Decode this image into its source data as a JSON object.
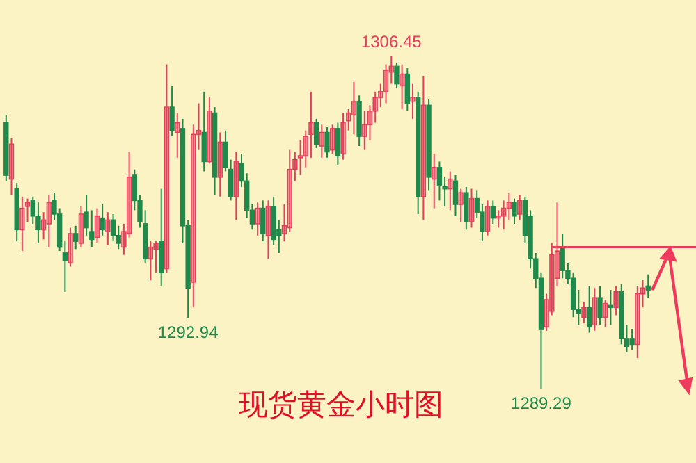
{
  "chart_data": {
    "type": "candlestick",
    "title": "现货黄金小时图",
    "categories": [
      null,
      null,
      null,
      null,
      null,
      null,
      null,
      null,
      null,
      null,
      null,
      null,
      null,
      null,
      null,
      null,
      null,
      null,
      null,
      null,
      null,
      null,
      null,
      null,
      null,
      null,
      null,
      null,
      null,
      null,
      null,
      null,
      null,
      null,
      null,
      null,
      null,
      null,
      null,
      null,
      null,
      null,
      null,
      null,
      null,
      null,
      null,
      null,
      null,
      null,
      null,
      null,
      null,
      null,
      null,
      null,
      null,
      null,
      null,
      null,
      null,
      null,
      null,
      null,
      null,
      null,
      null,
      null,
      null,
      null,
      null,
      null,
      null,
      null,
      null,
      null,
      null,
      null,
      null,
      null,
      null,
      null,
      null,
      null,
      null,
      null,
      null,
      null,
      null,
      null,
      null,
      null,
      null,
      null,
      null,
      null,
      null,
      null,
      null,
      null,
      null,
      null,
      null,
      null,
      null,
      null,
      null,
      null,
      null,
      null,
      null,
      null,
      null,
      null,
      null,
      null,
      null,
      null,
      null,
      null,
      null
    ],
    "ohlc": [
      [
        1303.0,
        1303.4,
        1300.0,
        1300.3
      ],
      [
        1300.1,
        1302.2,
        1299.3,
        1301.9
      ],
      [
        1299.6,
        1299.9,
        1296.9,
        1297.5
      ],
      [
        1297.5,
        1299.2,
        1296.4,
        1298.6
      ],
      [
        1298.7,
        1299.1,
        1297.9,
        1298.9
      ],
      [
        1299.0,
        1299.2,
        1297.8,
        1298.2
      ],
      [
        1298.2,
        1298.9,
        1296.8,
        1297.5
      ],
      [
        1297.5,
        1298.4,
        1297.0,
        1298.0
      ],
      [
        1297.8,
        1299.3,
        1296.6,
        1298.9
      ],
      [
        1299.0,
        1299.4,
        1298.0,
        1298.3
      ],
      [
        1298.3,
        1298.6,
        1296.4,
        1296.6
      ],
      [
        1296.3,
        1296.9,
        1294.3,
        1295.9
      ],
      [
        1295.8,
        1297.6,
        1295.6,
        1297.3
      ],
      [
        1297.3,
        1297.7,
        1296.5,
        1296.9
      ],
      [
        1296.8,
        1298.7,
        1296.6,
        1298.3
      ],
      [
        1298.4,
        1299.3,
        1297.2,
        1297.6
      ],
      [
        1297.4,
        1298.5,
        1296.6,
        1297.0
      ],
      [
        1297.1,
        1298.6,
        1296.8,
        1298.2
      ],
      [
        1298.1,
        1298.8,
        1297.2,
        1297.5
      ],
      [
        1297.4,
        1298.4,
        1296.7,
        1298.0
      ],
      [
        1298.0,
        1298.3,
        1296.9,
        1297.2
      ],
      [
        1297.2,
        1297.7,
        1296.5,
        1296.8
      ],
      [
        1296.6,
        1297.8,
        1296.2,
        1297.4
      ],
      [
        1297.3,
        1301.5,
        1297.1,
        1300.2
      ],
      [
        1300.3,
        1300.6,
        1298.5,
        1299.0
      ],
      [
        1299.0,
        1299.3,
        1297.6,
        1297.9
      ],
      [
        1297.8,
        1298.5,
        1295.8,
        1296.0
      ],
      [
        1296.0,
        1296.9,
        1294.9,
        1296.6
      ],
      [
        1296.5,
        1296.9,
        1295.3,
        1296.8
      ],
      [
        1296.9,
        1299.6,
        1294.6,
        1295.3
      ],
      [
        1295.5,
        1306.0,
        1295.3,
        1303.8
      ],
      [
        1303.8,
        1304.9,
        1302.3,
        1302.6
      ],
      [
        1302.5,
        1303.5,
        1301.2,
        1303.0
      ],
      [
        1302.7,
        1303.2,
        1296.8,
        1297.7
      ],
      [
        1297.7,
        1298.0,
        1292.94,
        1294.5
      ],
      [
        1294.8,
        1302.9,
        1293.5,
        1302.4
      ],
      [
        1302.4,
        1304.0,
        1301.6,
        1302.6
      ],
      [
        1302.5,
        1304.6,
        1300.5,
        1301.0
      ],
      [
        1301.0,
        1304.3,
        1300.9,
        1303.6
      ],
      [
        1303.5,
        1303.8,
        1299.3,
        1300.2
      ],
      [
        1300.2,
        1302.5,
        1299.2,
        1302.0
      ],
      [
        1302.0,
        1302.6,
        1300.5,
        1300.7
      ],
      [
        1300.6,
        1301.1,
        1299.0,
        1299.2
      ],
      [
        1299.2,
        1301.5,
        1298.0,
        1301.0
      ],
      [
        1300.9,
        1301.4,
        1299.7,
        1300.0
      ],
      [
        1300.0,
        1300.4,
        1298.1,
        1298.5
      ],
      [
        1298.5,
        1298.8,
        1297.5,
        1297.8
      ],
      [
        1297.8,
        1298.9,
        1297.2,
        1298.6
      ],
      [
        1298.6,
        1299.0,
        1296.9,
        1297.3
      ],
      [
        1297.2,
        1299.0,
        1296.0,
        1298.7
      ],
      [
        1298.7,
        1299.2,
        1296.7,
        1297.0
      ],
      [
        1297.5,
        1298.0,
        1296.3,
        1297.2
      ],
      [
        1297.3,
        1298.8,
        1296.9,
        1297.7
      ],
      [
        1297.6,
        1301.6,
        1297.4,
        1300.6
      ],
      [
        1300.6,
        1301.5,
        1300.0,
        1301.1
      ],
      [
        1301.2,
        1302.1,
        1300.3,
        1301.3
      ],
      [
        1301.3,
        1302.6,
        1300.7,
        1302.3
      ],
      [
        1302.4,
        1304.6,
        1301.2,
        1303.0
      ],
      [
        1303.0,
        1303.2,
        1301.7,
        1301.9
      ],
      [
        1301.8,
        1302.9,
        1301.2,
        1302.5
      ],
      [
        1302.5,
        1302.8,
        1301.2,
        1301.5
      ],
      [
        1301.6,
        1302.9,
        1301.4,
        1302.7
      ],
      [
        1302.7,
        1303.0,
        1300.8,
        1301.3
      ],
      [
        1301.4,
        1303.5,
        1301.1,
        1303.0
      ],
      [
        1303.1,
        1303.7,
        1302.6,
        1303.5
      ],
      [
        1303.4,
        1305.1,
        1302.4,
        1304.1
      ],
      [
        1304.1,
        1304.4,
        1301.8,
        1302.3
      ],
      [
        1302.3,
        1303.6,
        1301.6,
        1302.9
      ],
      [
        1302.9,
        1303.9,
        1302.1,
        1303.6
      ],
      [
        1303.6,
        1304.6,
        1303.0,
        1304.3
      ],
      [
        1304.3,
        1305.0,
        1303.8,
        1304.6
      ],
      [
        1304.6,
        1306.0,
        1304.0,
        1305.7
      ],
      [
        1305.6,
        1306.45,
        1305.0,
        1305.9
      ],
      [
        1305.9,
        1306.1,
        1304.8,
        1305.0
      ],
      [
        1304.9,
        1306.0,
        1303.7,
        1305.5
      ],
      [
        1305.5,
        1305.8,
        1303.6,
        1304.0
      ],
      [
        1304.1,
        1305.0,
        1303.2,
        1304.3
      ],
      [
        1304.3,
        1304.6,
        1298.3,
        1299.2
      ],
      [
        1299.2,
        1305.4,
        1298.0,
        1303.9
      ],
      [
        1303.9,
        1304.2,
        1299.5,
        1300.2
      ],
      [
        1300.1,
        1301.4,
        1298.6,
        1300.7
      ],
      [
        1300.7,
        1301.0,
        1299.0,
        1299.8
      ],
      [
        1299.7,
        1300.2,
        1298.7,
        1299.6
      ],
      [
        1299.6,
        1300.5,
        1298.5,
        1300.1
      ],
      [
        1300.0,
        1300.3,
        1298.2,
        1298.8
      ],
      [
        1298.8,
        1299.6,
        1297.9,
        1299.4
      ],
      [
        1299.4,
        1299.7,
        1297.5,
        1297.9
      ],
      [
        1297.9,
        1299.6,
        1297.6,
        1299.1
      ],
      [
        1299.1,
        1299.5,
        1298.1,
        1298.4
      ],
      [
        1298.4,
        1298.8,
        1296.9,
        1297.4
      ],
      [
        1297.4,
        1299.0,
        1297.2,
        1298.7
      ],
      [
        1298.7,
        1299.0,
        1297.8,
        1298.1
      ],
      [
        1298.1,
        1298.5,
        1297.6,
        1298.2
      ],
      [
        1298.2,
        1299.0,
        1297.5,
        1298.6
      ],
      [
        1298.6,
        1299.4,
        1298.0,
        1298.9
      ],
      [
        1298.9,
        1299.1,
        1297.8,
        1298.2
      ],
      [
        1298.3,
        1299.3,
        1298.0,
        1299.0
      ],
      [
        1299.0,
        1299.2,
        1296.8,
        1297.2
      ],
      [
        1298.2,
        1298.5,
        1295.5,
        1296.0
      ],
      [
        1296.0,
        1296.3,
        1294.5,
        1295.0
      ],
      [
        1295.0,
        1295.3,
        1289.29,
        1292.4
      ],
      [
        1292.5,
        1294.2,
        1292.3,
        1293.9
      ],
      [
        1293.3,
        1296.8,
        1293.1,
        1296.2
      ],
      [
        1295.0,
        1298.9,
        1294.6,
        1296.4
      ],
      [
        1296.6,
        1297.3,
        1295.0,
        1295.4
      ],
      [
        1295.4,
        1295.8,
        1294.7,
        1295.0
      ],
      [
        1295.0,
        1295.3,
        1293.0,
        1293.4
      ],
      [
        1293.4,
        1294.4,
        1292.6,
        1293.2
      ],
      [
        1293.0,
        1293.8,
        1292.7,
        1293.5
      ],
      [
        1293.5,
        1294.6,
        1292.2,
        1292.5
      ],
      [
        1292.6,
        1294.5,
        1292.3,
        1294.0
      ],
      [
        1294.0,
        1294.6,
        1292.6,
        1293.0
      ],
      [
        1293.0,
        1293.9,
        1292.5,
        1293.7
      ],
      [
        1293.6,
        1294.4,
        1292.6,
        1293.5
      ],
      [
        1293.5,
        1294.6,
        1293.1,
        1294.3
      ],
      [
        1294.3,
        1294.7,
        1291.6,
        1291.9
      ],
      [
        1291.9,
        1292.6,
        1291.2,
        1291.5
      ],
      [
        1291.9,
        1292.4,
        1291.3,
        1291.6
      ],
      [
        1291.6,
        1294.6,
        1290.9,
        1294.2
      ],
      [
        1294.2,
        1294.9,
        1293.5,
        1294.5
      ],
      [
        1294.6,
        1295.2,
        1294.0,
        1294.4
      ]
    ],
    "colors": [
      "#1f8a4b",
      "#e4405e",
      "#1f8a4b",
      "#e4405e",
      "#e4405e",
      "#1f8a4b",
      "#1f8a4b",
      "#e4405e",
      "#e4405e",
      "#1f8a4b",
      "#1f8a4b",
      "#1f8a4b",
      "#e4405e",
      "#1f8a4b",
      "#e4405e",
      "#1f8a4b",
      "#1f8a4b",
      "#e4405e",
      "#1f8a4b",
      "#e4405e",
      "#1f8a4b",
      "#1f8a4b",
      "#e4405e",
      "#e4405e",
      "#1f8a4b",
      "#1f8a4b",
      "#1f8a4b",
      "#e4405e",
      "#e4405e",
      "#1f8a4b",
      "#e4405e",
      "#1f8a4b",
      "#e4405e",
      "#1f8a4b",
      "#1f8a4b",
      "#e4405e",
      "#e4405e",
      "#1f8a4b",
      "#e4405e",
      "#1f8a4b",
      "#e4405e",
      "#1f8a4b",
      "#1f8a4b",
      "#e4405e",
      "#1f8a4b",
      "#1f8a4b",
      "#1f8a4b",
      "#e4405e",
      "#1f8a4b",
      "#e4405e",
      "#1f8a4b",
      "#1f8a4b",
      "#e4405e",
      "#e4405e",
      "#e4405e",
      "#e4405e",
      "#e4405e",
      "#e4405e",
      "#1f8a4b",
      "#e4405e",
      "#1f8a4b",
      "#e4405e",
      "#1f8a4b",
      "#e4405e",
      "#e4405e",
      "#e4405e",
      "#1f8a4b",
      "#e4405e",
      "#e4405e",
      "#e4405e",
      "#e4405e",
      "#e4405e",
      "#e4405e",
      "#1f8a4b",
      "#e4405e",
      "#1f8a4b",
      "#e4405e",
      "#1f8a4b",
      "#e4405e",
      "#1f8a4b",
      "#e4405e",
      "#1f8a4b",
      "#1f8a4b",
      "#e4405e",
      "#1f8a4b",
      "#e4405e",
      "#1f8a4b",
      "#e4405e",
      "#1f8a4b",
      "#1f8a4b",
      "#e4405e",
      "#1f8a4b",
      "#e4405e",
      "#e4405e",
      "#e4405e",
      "#1f8a4b",
      "#e4405e",
      "#1f8a4b",
      "#1f8a4b",
      "#1f8a4b",
      "#1f8a4b",
      "#e4405e",
      "#e4405e",
      "#e4405e",
      "#1f8a4b",
      "#1f8a4b",
      "#1f8a4b",
      "#1f8a4b",
      "#e4405e",
      "#1f8a4b",
      "#e4405e",
      "#1f8a4b",
      "#e4405e",
      "#1f8a4b",
      "#e4405e",
      "#1f8a4b",
      "#1f8a4b",
      "#1f8a4b",
      "#e4405e",
      "#e4405e",
      "#1f8a4b"
    ],
    "ref_lines": [
      {
        "axis": "y",
        "value": 1296.6,
        "color": "#e8405a"
      }
    ],
    "annotations": [
      {
        "text": "1306.45",
        "y": 1306.45
      },
      {
        "text": "1292.94",
        "y": 1292.94
      },
      {
        "text": "1289.29",
        "y": 1289.29
      }
    ]
  }
}
